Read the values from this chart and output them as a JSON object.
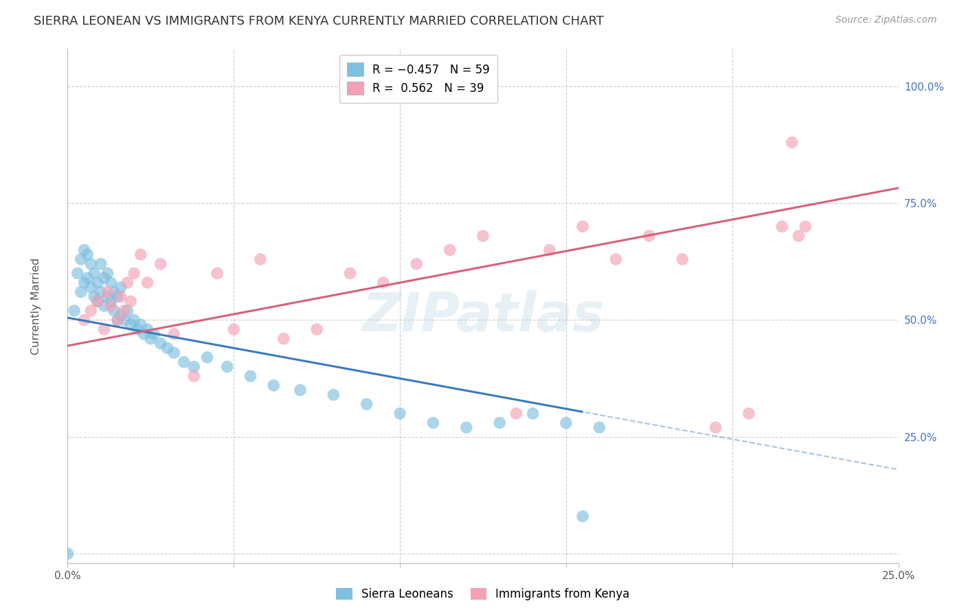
{
  "title": "SIERRA LEONEAN VS IMMIGRANTS FROM KENYA CURRENTLY MARRIED CORRELATION CHART",
  "source": "Source: ZipAtlas.com",
  "ylabel": "Currently Married",
  "xlim": [
    0.0,
    0.25
  ],
  "ylim": [
    -0.02,
    1.08
  ],
  "y_ticks": [
    0.0,
    0.25,
    0.5,
    0.75,
    1.0
  ],
  "y_tick_labels": [
    "",
    "25.0%",
    "50.0%",
    "75.0%",
    "100.0%"
  ],
  "x_ticks": [
    0.0,
    0.05,
    0.1,
    0.15,
    0.2,
    0.25
  ],
  "x_tick_labels": [
    "0.0%",
    "",
    "",
    "",
    "",
    "25.0%"
  ],
  "blue_color": "#7fbfdf",
  "pink_color": "#f4a0b5",
  "blue_line_color": "#3a7abf",
  "pink_line_color": "#d9607a",
  "blue_line_solid_end": 0.155,
  "blue_line_x0": 0.0,
  "blue_line_y0": 0.505,
  "blue_line_slope": -1.3,
  "pink_line_x0": 0.0,
  "pink_line_y0": 0.445,
  "pink_line_slope": 1.35,
  "sierra_x": [
    0.002,
    0.003,
    0.004,
    0.004,
    0.005,
    0.005,
    0.006,
    0.006,
    0.007,
    0.007,
    0.008,
    0.008,
    0.009,
    0.009,
    0.01,
    0.01,
    0.011,
    0.011,
    0.012,
    0.012,
    0.013,
    0.013,
    0.014,
    0.014,
    0.015,
    0.015,
    0.016,
    0.016,
    0.017,
    0.018,
    0.019,
    0.02,
    0.021,
    0.022,
    0.023,
    0.024,
    0.025,
    0.026,
    0.028,
    0.03,
    0.032,
    0.035,
    0.038,
    0.042,
    0.048,
    0.055,
    0.062,
    0.07,
    0.08,
    0.09,
    0.1,
    0.11,
    0.12,
    0.13,
    0.14,
    0.15,
    0.16,
    0.0,
    0.155
  ],
  "sierra_y": [
    0.52,
    0.6,
    0.56,
    0.63,
    0.58,
    0.65,
    0.59,
    0.64,
    0.57,
    0.62,
    0.55,
    0.6,
    0.54,
    0.58,
    0.56,
    0.62,
    0.53,
    0.59,
    0.55,
    0.6,
    0.54,
    0.58,
    0.52,
    0.56,
    0.5,
    0.55,
    0.51,
    0.57,
    0.5,
    0.52,
    0.49,
    0.5,
    0.48,
    0.49,
    0.47,
    0.48,
    0.46,
    0.47,
    0.45,
    0.44,
    0.43,
    0.41,
    0.4,
    0.42,
    0.4,
    0.38,
    0.36,
    0.35,
    0.34,
    0.32,
    0.3,
    0.28,
    0.27,
    0.28,
    0.3,
    0.28,
    0.27,
    0.0,
    0.08
  ],
  "kenya_x": [
    0.005,
    0.007,
    0.009,
    0.011,
    0.012,
    0.013,
    0.015,
    0.016,
    0.017,
    0.018,
    0.019,
    0.02,
    0.022,
    0.024,
    0.028,
    0.032,
    0.038,
    0.045,
    0.05,
    0.058,
    0.065,
    0.075,
    0.085,
    0.095,
    0.105,
    0.115,
    0.125,
    0.135,
    0.145,
    0.155,
    0.165,
    0.175,
    0.185,
    0.195,
    0.205,
    0.215,
    0.218,
    0.22,
    0.222
  ],
  "kenya_y": [
    0.5,
    0.52,
    0.54,
    0.48,
    0.56,
    0.53,
    0.5,
    0.55,
    0.52,
    0.58,
    0.54,
    0.6,
    0.64,
    0.58,
    0.62,
    0.47,
    0.38,
    0.6,
    0.48,
    0.63,
    0.46,
    0.48,
    0.6,
    0.58,
    0.62,
    0.65,
    0.68,
    0.3,
    0.65,
    0.7,
    0.63,
    0.68,
    0.63,
    0.27,
    0.3,
    0.7,
    0.88,
    0.68,
    0.7
  ]
}
